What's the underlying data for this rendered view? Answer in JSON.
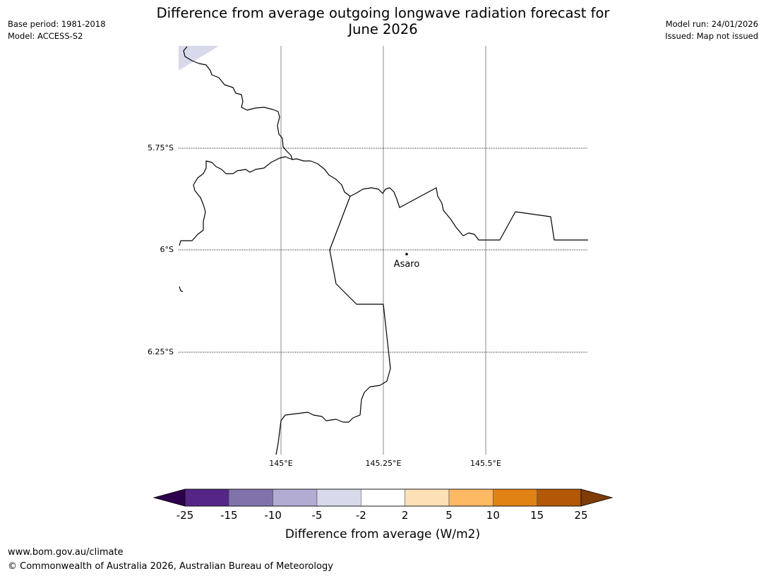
{
  "header": {
    "base_period": "Base period: 1981-2018",
    "model": "Model: ACCESS-S2",
    "model_run": "Model run: 24/01/2026",
    "issued": "Issued: Map not issued",
    "title_line1": "Difference from average outgoing longwave radiation forecast for",
    "title_line2": "June 2026"
  },
  "map": {
    "lat_labels": [
      "5.75°S",
      "6°S",
      "6.25°S"
    ],
    "lon_labels": [
      "145°E",
      "145.25°E",
      "145.5°E"
    ],
    "place": {
      "name": "Asaro"
    }
  },
  "legend": {
    "title": "Difference from average (W/m2)",
    "ticks": [
      "-25",
      "-15",
      "-10",
      "-5",
      "-2",
      "2",
      "5",
      "10",
      "15",
      "25"
    ],
    "colors": [
      "#552588",
      "#8073ac",
      "#b2abd2",
      "#d8daeb",
      "#ffffff",
      "#fee0b6",
      "#fdb863",
      "#e08214",
      "#b35806"
    ],
    "low_extend_color": "#2d004b",
    "high_extend_color": "#7f3b08",
    "shaded_region_color": "#d8daeb"
  },
  "footer": {
    "url": "www.bom.gov.au/climate",
    "copyright": "© Commonwealth of Australia 2026, Australian Bureau of Meteorology"
  }
}
